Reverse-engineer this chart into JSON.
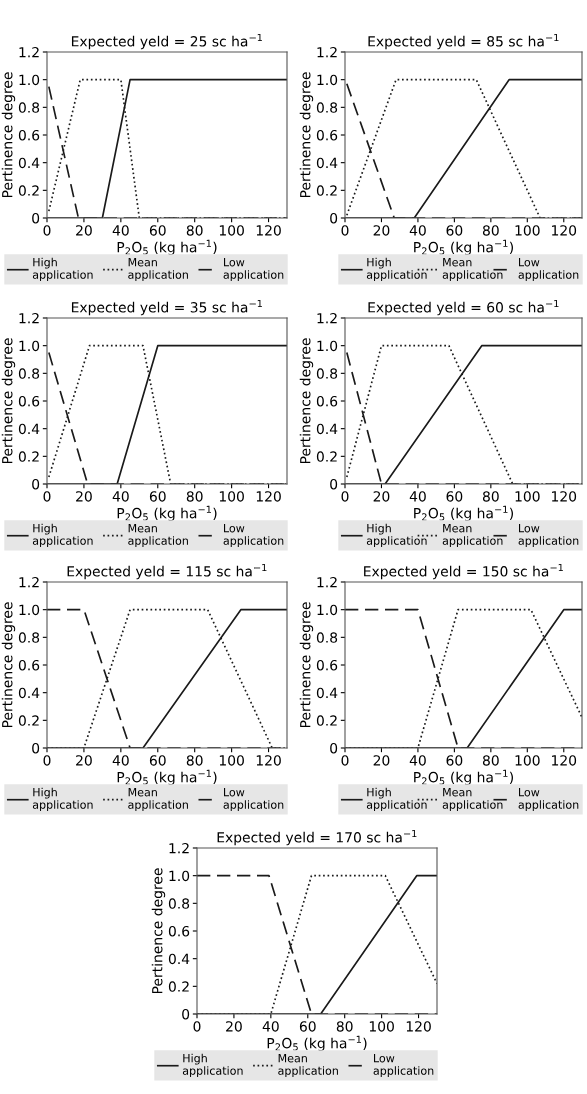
{
  "chart_data": [
    {
      "type": "line",
      "title": "Expected yeld = 25 sc ha$^{−1}$",
      "xlabel": "P$_{2}$O$_{5}$ (kg ha$^{−1}$)",
      "ylabel": "Pertinence degree",
      "xlim": [
        0,
        130
      ],
      "ylim": [
        0,
        1.2
      ],
      "xticks": [
        0,
        20,
        40,
        60,
        80,
        100,
        120
      ],
      "yticks": [
        0,
        {
          "value": 0.2,
          "label": "0.2"
        },
        {
          "value": 0.4,
          "label": "0.4"
        },
        {
          "value": 0.6,
          "label": "0.6"
        },
        {
          "value": 0.8,
          "label": "0.8"
        },
        {
          "value": 1,
          "label": "1.0"
        },
        {
          "value": 1.2,
          "label": "1.2"
        }
      ],
      "grid": false,
      "legend": "bottom",
      "marker": "none",
      "series": [
        {
          "name": "High\napplication",
          "color": "#1a1a1a",
          "line_style": "solid",
          "x": [
            0,
            30,
            45,
            130
          ],
          "values": [
            0,
            0,
            1,
            1
          ]
        },
        {
          "name": "Mean\napplication",
          "color": "#1a1a1a",
          "line_style": "dotted",
          "x": [
            1,
            18,
            40,
            50,
            130
          ],
          "values": [
            0.05,
            1,
            1,
            0,
            0
          ]
        },
        {
          "name": "Low\napplication",
          "color": "#1a1a1a",
          "line_style": "dashed",
          "x": [
            1,
            17,
            130
          ],
          "values": [
            0.95,
            0,
            0
          ]
        }
      ]
    },
    {
      "type": "line",
      "title": "Expected yeld = 85 sc ha$^{−1}$",
      "xlabel": "P$_{2}$O$_{5}$ (kg ha$^{−1}$)",
      "ylabel": "Pertinence degree",
      "xlim": [
        0,
        130
      ],
      "ylim": [
        0,
        1.2
      ],
      "xticks": [
        0,
        20,
        40,
        60,
        80,
        100,
        120
      ],
      "yticks": [
        0,
        {
          "value": 0.2,
          "label": "0.2"
        },
        {
          "value": 0.4,
          "label": "0.4"
        },
        {
          "value": 0.6,
          "label": "0.6"
        },
        {
          "value": 0.8,
          "label": "0.8"
        },
        {
          "value": 1,
          "label": "1.0"
        },
        {
          "value": 1.2,
          "label": "1.2"
        }
      ],
      "grid": false,
      "legend": "bottom",
      "marker": "none",
      "series": [
        {
          "name": "High\napplication",
          "color": "#1a1a1a",
          "line_style": "solid",
          "x": [
            0,
            38,
            90,
            130
          ],
          "values": [
            0,
            0,
            1,
            1
          ]
        },
        {
          "name": "Mean\napplication",
          "color": "#1a1a1a",
          "line_style": "dotted",
          "x": [
            1,
            28,
            72,
            107,
            130
          ],
          "values": [
            0.02,
            1,
            1,
            0,
            0
          ]
        },
        {
          "name": "Low\napplication",
          "color": "#1a1a1a",
          "line_style": "dashed",
          "x": [
            1,
            27,
            130
          ],
          "values": [
            0.97,
            0,
            0
          ]
        }
      ]
    },
    {
      "type": "line",
      "title": "Expected yeld = 35 sc ha$^{−1}$",
      "xlabel": "P$_{2}$O$_{5}$ (kg ha$^{−1}$)",
      "ylabel": "Pertinence degree",
      "xlim": [
        0,
        130
      ],
      "ylim": [
        0,
        1.2
      ],
      "xticks": [
        0,
        20,
        40,
        60,
        80,
        100,
        120
      ],
      "yticks": [
        0,
        {
          "value": 0.2,
          "label": "0.2"
        },
        {
          "value": 0.4,
          "label": "0.4"
        },
        {
          "value": 0.6,
          "label": "0.6"
        },
        {
          "value": 0.8,
          "label": "0.8"
        },
        {
          "value": 1,
          "label": "1.0"
        },
        {
          "value": 1.2,
          "label": "1.2"
        }
      ],
      "grid": false,
      "legend": "bottom",
      "marker": "none",
      "series": [
        {
          "name": "High\napplication",
          "color": "#1a1a1a",
          "line_style": "solid",
          "x": [
            0,
            38,
            60,
            130
          ],
          "values": [
            0,
            0,
            1,
            1
          ]
        },
        {
          "name": "Mean\napplication",
          "color": "#1a1a1a",
          "line_style": "dotted",
          "x": [
            1,
            23,
            52,
            67,
            130
          ],
          "values": [
            0.05,
            1,
            1,
            0,
            0
          ]
        },
        {
          "name": "Low\napplication",
          "color": "#1a1a1a",
          "line_style": "dashed",
          "x": [
            1,
            22,
            130
          ],
          "values": [
            0.95,
            0,
            0
          ]
        }
      ]
    },
    {
      "type": "line",
      "title": "Expected yeld = 60 sc ha$^{−1}$",
      "xlabel": "P$_{2}$O$_{5}$ (kg ha$^{−1}$)",
      "ylabel": "Pertinence degree",
      "xlim": [
        0,
        130
      ],
      "ylim": [
        0,
        1.2
      ],
      "xticks": [
        0,
        20,
        40,
        60,
        80,
        100,
        120
      ],
      "yticks": [
        0,
        {
          "value": 0.2,
          "label": "0.2"
        },
        {
          "value": 0.4,
          "label": "0.4"
        },
        {
          "value": 0.6,
          "label": "0.6"
        },
        {
          "value": 0.8,
          "label": "0.8"
        },
        {
          "value": 1,
          "label": "1.0"
        },
        {
          "value": 1.2,
          "label": "1.2"
        }
      ],
      "grid": false,
      "legend": "bottom",
      "marker": "none",
      "series": [
        {
          "name": "High\napplication",
          "color": "#1a1a1a",
          "line_style": "solid",
          "x": [
            0,
            22,
            75,
            130
          ],
          "values": [
            0,
            0,
            1,
            1
          ]
        },
        {
          "name": "Mean\napplication",
          "color": "#1a1a1a",
          "line_style": "dotted",
          "x": [
            1,
            20,
            57,
            92,
            130
          ],
          "values": [
            0.05,
            1,
            1,
            0,
            0
          ]
        },
        {
          "name": "Low\napplication",
          "color": "#1a1a1a",
          "line_style": "dashed",
          "x": [
            1,
            20,
            130
          ],
          "values": [
            0.95,
            0,
            0
          ]
        }
      ]
    },
    {
      "type": "line",
      "title": "Expected yeld = 115 sc ha$^{−1}$",
      "xlabel": "P$_{2}$O$_{5}$ (kg ha$^{−1}$)",
      "ylabel": "Pertinence degree",
      "xlim": [
        0,
        130
      ],
      "ylim": [
        0,
        1.2
      ],
      "xticks": [
        0,
        20,
        40,
        60,
        80,
        100,
        120
      ],
      "yticks": [
        0,
        {
          "value": 0.2,
          "label": "0.2"
        },
        {
          "value": 0.4,
          "label": "0.4"
        },
        {
          "value": 0.6,
          "label": "0.6"
        },
        {
          "value": 0.8,
          "label": "0.8"
        },
        {
          "value": 1,
          "label": "1.0"
        },
        {
          "value": 1.2,
          "label": "1.2"
        }
      ],
      "grid": false,
      "legend": "bottom",
      "marker": "none",
      "series": [
        {
          "name": "High\napplication",
          "color": "#1a1a1a",
          "line_style": "solid",
          "x": [
            0,
            52,
            105,
            130
          ],
          "values": [
            0,
            0,
            1,
            1
          ]
        },
        {
          "name": "Mean\napplication",
          "color": "#1a1a1a",
          "line_style": "dotted",
          "x": [
            0,
            20,
            45,
            87,
            122,
            130
          ],
          "values": [
            0,
            0,
            1,
            1,
            0,
            0
          ]
        },
        {
          "name": "Low\napplication",
          "color": "#1a1a1a",
          "line_style": "dashed",
          "x": [
            0,
            20,
            45,
            130
          ],
          "values": [
            1,
            1,
            0,
            0
          ]
        }
      ]
    },
    {
      "type": "line",
      "title": "Expected yeld = 150 sc ha$^{−1}$",
      "xlabel": "P$_{2}$O$_{5}$ (kg ha$^{−1}$)",
      "ylabel": "Pertinence degree",
      "xlim": [
        0,
        130
      ],
      "ylim": [
        0,
        1.2
      ],
      "xticks": [
        0,
        20,
        40,
        60,
        80,
        100,
        120
      ],
      "yticks": [
        0,
        {
          "value": 0.2,
          "label": "0.2"
        },
        {
          "value": 0.4,
          "label": "0.4"
        },
        {
          "value": 0.6,
          "label": "0.6"
        },
        {
          "value": 0.8,
          "label": "0.8"
        },
        {
          "value": 1,
          "label": "1.0"
        },
        {
          "value": 1.2,
          "label": "1.2"
        }
      ],
      "grid": false,
      "legend": "bottom",
      "marker": "none",
      "series": [
        {
          "name": "High\napplication",
          "color": "#1a1a1a",
          "line_style": "solid",
          "x": [
            0,
            67,
            120,
            130
          ],
          "values": [
            0,
            0,
            1,
            1
          ]
        },
        {
          "name": "Mean\napplication",
          "color": "#1a1a1a",
          "line_style": "dotted",
          "x": [
            0,
            40,
            62,
            102,
            130
          ],
          "values": [
            0,
            0,
            1,
            1,
            0.22
          ]
        },
        {
          "name": "Low\napplication",
          "color": "#1a1a1a",
          "line_style": "dashed",
          "x": [
            0,
            40,
            62,
            130
          ],
          "values": [
            1,
            1,
            0,
            0
          ]
        }
      ]
    },
    {
      "type": "line",
      "title": "Expected yeld = 170 sc ha$^{−1}$",
      "xlabel": "P$_{2}$O$_{5}$ (kg ha$^{−1}$)",
      "ylabel": "Pertinence degree",
      "xlim": [
        0,
        130
      ],
      "ylim": [
        0,
        1.2
      ],
      "xticks": [
        0,
        20,
        40,
        60,
        80,
        100,
        120
      ],
      "yticks": [
        0,
        {
          "value": 0.2,
          "label": "0.2"
        },
        {
          "value": 0.4,
          "label": "0.4"
        },
        {
          "value": 0.6,
          "label": "0.6"
        },
        {
          "value": 0.8,
          "label": "0.8"
        },
        {
          "value": 1,
          "label": "1.0"
        },
        {
          "value": 1.2,
          "label": "1.2"
        }
      ],
      "grid": false,
      "legend": "bottom",
      "marker": "none",
      "series": [
        {
          "name": "High\napplication",
          "color": "#1a1a1a",
          "line_style": "solid",
          "x": [
            0,
            67,
            119,
            130
          ],
          "values": [
            0,
            0,
            1,
            1
          ]
        },
        {
          "name": "Mean\napplication",
          "color": "#1a1a1a",
          "line_style": "dotted",
          "x": [
            0,
            40,
            62,
            102,
            130
          ],
          "values": [
            0,
            0,
            1,
            1,
            0.22
          ]
        },
        {
          "name": "Low\napplication",
          "color": "#1a1a1a",
          "line_style": "dashed",
          "x": [
            0,
            39,
            62,
            130
          ],
          "values": [
            1,
            1,
            0,
            0
          ]
        }
      ]
    }
  ]
}
